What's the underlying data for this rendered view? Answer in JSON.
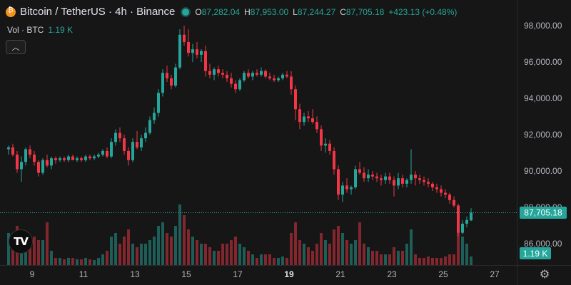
{
  "legend": {
    "pair": "Bitcoin / TetherUS",
    "interval": "4h",
    "exchange": "Binance",
    "separator": "·",
    "open_label": "O",
    "open": "87,282.04",
    "high_label": "H",
    "high": "87,953.00",
    "low_label": "L",
    "low": "87,244.27",
    "close_label": "C",
    "close": "87,705.18",
    "change": "+423.13 (+0.48%)"
  },
  "volume_legend": {
    "label": "Vol · BTC",
    "value": "1.19 K"
  },
  "price_tag": "87,705.18",
  "volume_tag": "1.19 K",
  "colors": {
    "up": "#26a69a",
    "down": "#f23645",
    "background": "#161616",
    "coin": "#f7931a"
  },
  "icons": {
    "coin": "bitcoin-icon",
    "collapse": "chevron-up-icon",
    "settings": "gear-icon",
    "logo": "tradingview-logo"
  },
  "logo_text": "TV",
  "chart_data": {
    "type": "candlestick",
    "symbol": "BTCUSDT",
    "y_ticks": [
      "98,000.00",
      "96,000.00",
      "94,000.00",
      "92,000.00",
      "90,000.00",
      "88,000.00",
      "86,000.00"
    ],
    "y_tick_values": [
      98000,
      96000,
      94000,
      92000,
      90000,
      88000,
      86000
    ],
    "x_ticks": [
      "9",
      "11",
      "13",
      "15",
      "17",
      "19",
      "21",
      "23",
      "25",
      "27"
    ],
    "x_tick_days": [
      9,
      11,
      13,
      15,
      17,
      19,
      21,
      23,
      25,
      27
    ],
    "ylim": [
      85100,
      98700
    ],
    "last_price": 87705.18,
    "grid": false,
    "day_start": 8,
    "candles_per_day": 6,
    "candles": [
      [
        91200,
        91400,
        90900,
        91300,
        0.45
      ],
      [
        91300,
        91500,
        90800,
        90900,
        0.35
      ],
      [
        90900,
        91100,
        89900,
        90100,
        0.55
      ],
      [
        90100,
        90800,
        89400,
        90500,
        0.25
      ],
      [
        90500,
        91300,
        90300,
        91200,
        0.2
      ],
      [
        91200,
        91400,
        90700,
        90900,
        0.3
      ],
      [
        90900,
        91100,
        90300,
        90500,
        0.4
      ],
      [
        90500,
        90600,
        89700,
        89900,
        0.35
      ],
      [
        89900,
        90700,
        89800,
        90600,
        0.35
      ],
      [
        90600,
        90900,
        90200,
        90300,
        0.6
      ],
      [
        90300,
        90800,
        90100,
        90700,
        0.2
      ],
      [
        90700,
        90800,
        90400,
        90600,
        0.1
      ],
      [
        90600,
        90800,
        90500,
        90700,
        0.1
      ],
      [
        90700,
        90800,
        90500,
        90600,
        0.08
      ],
      [
        90600,
        90900,
        90500,
        90800,
        0.1
      ],
      [
        90800,
        90900,
        90600,
        90600,
        0.1
      ],
      [
        90600,
        90800,
        90500,
        90700,
        0.08
      ],
      [
        90700,
        90800,
        90500,
        90600,
        0.08
      ],
      [
        90600,
        90900,
        90500,
        90800,
        0.1
      ],
      [
        90800,
        90900,
        90600,
        90700,
        0.08
      ],
      [
        90700,
        90900,
        90600,
        90800,
        0.07
      ],
      [
        90800,
        91000,
        90700,
        90900,
        0.1
      ],
      [
        90900,
        91200,
        90800,
        91100,
        0.15
      ],
      [
        91100,
        91300,
        90700,
        90800,
        0.2
      ],
      [
        90800,
        91800,
        90700,
        91600,
        0.4
      ],
      [
        91600,
        92300,
        91400,
        92100,
        0.45
      ],
      [
        92100,
        92400,
        91600,
        91800,
        0.3
      ],
      [
        91800,
        92000,
        90900,
        91100,
        0.4
      ],
      [
        91100,
        91300,
        90300,
        90600,
        0.5
      ],
      [
        90600,
        91800,
        90500,
        91600,
        0.3
      ],
      [
        91600,
        92200,
        91200,
        91300,
        0.25
      ],
      [
        91300,
        92000,
        91100,
        91800,
        0.3
      ],
      [
        91800,
        92400,
        91600,
        92100,
        0.3
      ],
      [
        92100,
        93000,
        92000,
        92800,
        0.35
      ],
      [
        92800,
        93500,
        92600,
        93200,
        0.4
      ],
      [
        93200,
        94500,
        93000,
        94300,
        0.55
      ],
      [
        94300,
        95600,
        94100,
        95400,
        0.6
      ],
      [
        95400,
        95800,
        94900,
        95100,
        0.45
      ],
      [
        95100,
        95300,
        94500,
        94700,
        0.4
      ],
      [
        94700,
        95900,
        94600,
        95700,
        0.55
      ],
      [
        95700,
        97800,
        95600,
        97500,
        0.85
      ],
      [
        97500,
        98000,
        96900,
        97100,
        0.7
      ],
      [
        97100,
        97800,
        96300,
        96500,
        0.5
      ],
      [
        96500,
        97000,
        96000,
        96700,
        0.4
      ],
      [
        96700,
        97100,
        96200,
        96400,
        0.35
      ],
      [
        96400,
        96700,
        96000,
        96600,
        0.3
      ],
      [
        96600,
        96900,
        95200,
        95500,
        0.3
      ],
      [
        95500,
        95900,
        95100,
        95300,
        0.25
      ],
      [
        95300,
        95700,
        95000,
        95600,
        0.2
      ],
      [
        95600,
        95800,
        95200,
        95400,
        0.2
      ],
      [
        95400,
        95600,
        95100,
        95300,
        0.3
      ],
      [
        95300,
        95500,
        94900,
        95100,
        0.3
      ],
      [
        95100,
        95400,
        94600,
        94800,
        0.35
      ],
      [
        94800,
        95000,
        94300,
        94500,
        0.4
      ],
      [
        94500,
        95100,
        94400,
        95000,
        0.3
      ],
      [
        95000,
        95500,
        94900,
        95400,
        0.25
      ],
      [
        95400,
        95600,
        95100,
        95200,
        0.2
      ],
      [
        95200,
        95500,
        95000,
        95400,
        0.15
      ],
      [
        95400,
        95600,
        95200,
        95300,
        0.1
      ],
      [
        95300,
        95700,
        95200,
        95500,
        0.15
      ],
      [
        95500,
        95600,
        95100,
        95200,
        0.15
      ],
      [
        95200,
        95400,
        95000,
        95100,
        0.15
      ],
      [
        95100,
        95300,
        94900,
        95000,
        0.1
      ],
      [
        95000,
        95200,
        94900,
        95100,
        0.1
      ],
      [
        95100,
        95400,
        95000,
        95300,
        0.12
      ],
      [
        95300,
        95500,
        95100,
        95200,
        0.1
      ],
      [
        95200,
        95500,
        94200,
        94500,
        0.45
      ],
      [
        94500,
        94700,
        92800,
        93400,
        0.6
      ],
      [
        93400,
        93700,
        92300,
        92700,
        0.35
      ],
      [
        92700,
        93200,
        92500,
        93000,
        0.3
      ],
      [
        93000,
        93300,
        92700,
        92900,
        0.25
      ],
      [
        92900,
        93400,
        92600,
        92700,
        0.2
      ],
      [
        92700,
        93000,
        92100,
        92300,
        0.3
      ],
      [
        92300,
        92500,
        91100,
        91400,
        0.45
      ],
      [
        91400,
        91800,
        91000,
        91500,
        0.35
      ],
      [
        91500,
        91700,
        90900,
        91100,
        0.3
      ],
      [
        91100,
        91300,
        89800,
        90100,
        0.5
      ],
      [
        90100,
        90300,
        88400,
        88700,
        0.55
      ],
      [
        88700,
        89400,
        88300,
        89200,
        0.45
      ],
      [
        89200,
        89600,
        88800,
        89000,
        0.35
      ],
      [
        89000,
        89200,
        88700,
        89100,
        0.3
      ],
      [
        89100,
        90300,
        89000,
        90100,
        0.35
      ],
      [
        90100,
        90500,
        89800,
        89900,
        0.6
      ],
      [
        89900,
        90200,
        89400,
        89600,
        0.3
      ],
      [
        89600,
        90100,
        89400,
        89800,
        0.25
      ],
      [
        89800,
        90000,
        89500,
        89700,
        0.2
      ],
      [
        89700,
        89900,
        89400,
        89600,
        0.2
      ],
      [
        89600,
        89800,
        89200,
        89500,
        0.15
      ],
      [
        89500,
        89900,
        89300,
        89700,
        0.15
      ],
      [
        89700,
        89900,
        89300,
        89500,
        0.15
      ],
      [
        89500,
        89700,
        88600,
        89200,
        0.25
      ],
      [
        89200,
        89900,
        89000,
        89600,
        0.2
      ],
      [
        89600,
        89800,
        89100,
        89300,
        0.2
      ],
      [
        89300,
        89600,
        89100,
        89500,
        0.3
      ],
      [
        89500,
        91200,
        89300,
        89800,
        0.5
      ],
      [
        89800,
        90000,
        89200,
        89600,
        0.15
      ],
      [
        89600,
        89800,
        89300,
        89500,
        0.1
      ],
      [
        89500,
        89700,
        89200,
        89400,
        0.1
      ],
      [
        89400,
        89600,
        89100,
        89300,
        0.12
      ],
      [
        89300,
        89400,
        88900,
        89100,
        0.1
      ],
      [
        89100,
        89300,
        88800,
        89000,
        0.1
      ],
      [
        89000,
        89200,
        88600,
        88800,
        0.1
      ],
      [
        88800,
        89000,
        88500,
        88700,
        0.12
      ],
      [
        88700,
        88800,
        88200,
        88400,
        0.15
      ],
      [
        88400,
        88600,
        88000,
        88100,
        0.15
      ],
      [
        88100,
        88200,
        86400,
        86600,
        0.6
      ],
      [
        86600,
        87300,
        86500,
        87100,
        0.4
      ],
      [
        87100,
        87500,
        86900,
        87300,
        0.3
      ],
      [
        87282.04,
        87953,
        87244.27,
        87705.18,
        0.12
      ]
    ]
  }
}
